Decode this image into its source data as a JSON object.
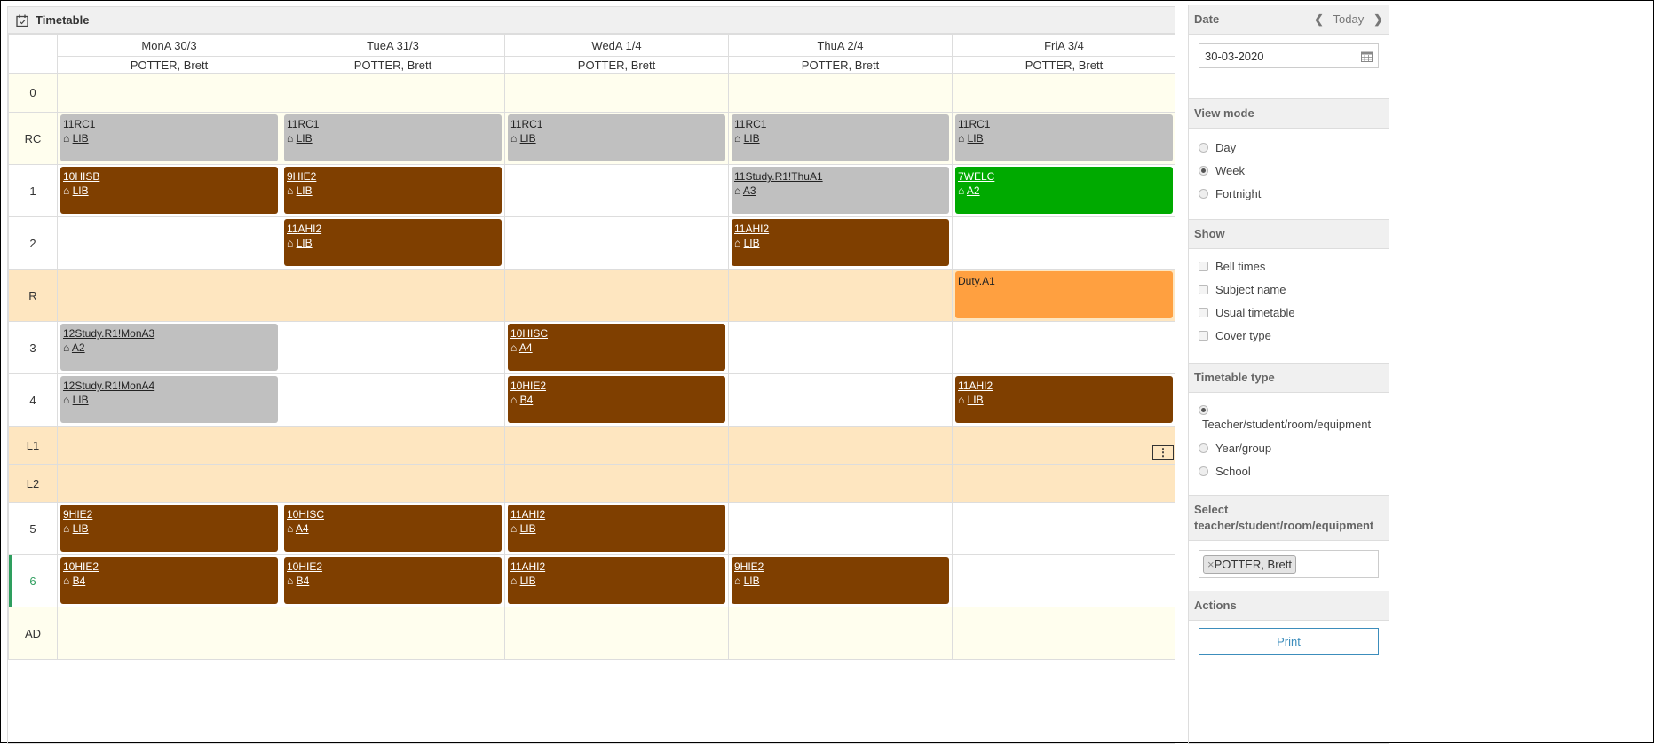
{
  "title": "Timetable",
  "days": [
    {
      "label": "MonA 30/3",
      "person": "POTTER, Brett"
    },
    {
      "label": "TueA 31/3",
      "person": "POTTER, Brett"
    },
    {
      "label": "WedA 1/4",
      "person": "POTTER, Brett"
    },
    {
      "label": "ThuA 2/4",
      "person": "POTTER, Brett"
    },
    {
      "label": "FriA 3/4",
      "person": "POTTER, Brett"
    }
  ],
  "colors": {
    "grey": "#c0c0c0",
    "brown": "#7f3f00",
    "green": "#00aa00",
    "orange": "#ffa040",
    "break_row": "#fee6c0",
    "empty_row": "#fffeee",
    "current_period": "#2e9e5e"
  },
  "rows": [
    {
      "period": "0",
      "kind": "empty",
      "cells": [
        null,
        null,
        null,
        null,
        null
      ]
    },
    {
      "period": "RC",
      "kind": "empty",
      "cells": [
        {
          "title": "11RC1",
          "room": "LIB",
          "color": "g"
        },
        {
          "title": "11RC1",
          "room": "LIB",
          "color": "g"
        },
        {
          "title": "11RC1",
          "room": "LIB",
          "color": "g"
        },
        {
          "title": "11RC1",
          "room": "LIB",
          "color": "g"
        },
        {
          "title": "11RC1",
          "room": "LIB",
          "color": "g"
        }
      ]
    },
    {
      "period": "1",
      "kind": "",
      "cells": [
        {
          "title": "10HISB",
          "room": "LIB",
          "color": "b"
        },
        {
          "title": "9HIE2",
          "room": "LIB",
          "color": "b"
        },
        null,
        {
          "title": "11Study.R1!ThuA1",
          "room": "A3",
          "color": "g"
        },
        {
          "title": "7WELC",
          "room": "A2",
          "color": "gr"
        }
      ]
    },
    {
      "period": "2",
      "kind": "",
      "cells": [
        null,
        {
          "title": "11AHI2",
          "room": "LIB",
          "color": "b"
        },
        null,
        {
          "title": "11AHI2",
          "room": "LIB",
          "color": "b"
        },
        null
      ]
    },
    {
      "period": "R",
      "kind": "break",
      "cells": [
        null,
        null,
        null,
        null,
        {
          "title": "Duty.A1",
          "color": "o"
        }
      ]
    },
    {
      "period": "3",
      "kind": "",
      "cells": [
        {
          "title": "12Study.R1!MonA3",
          "room": "A2",
          "color": "g"
        },
        null,
        {
          "title": "10HISC",
          "room": "A4",
          "color": "b"
        },
        null,
        null
      ]
    },
    {
      "period": "4",
      "kind": "",
      "cells": [
        {
          "title": "12Study.R1!MonA4",
          "room": "LIB",
          "color": "g"
        },
        null,
        {
          "title": "10HIE2",
          "room": "B4",
          "color": "b"
        },
        null,
        {
          "title": "11AHI2",
          "room": "LIB",
          "color": "b"
        }
      ]
    },
    {
      "period": "L1",
      "kind": "break",
      "short": true,
      "cells": [
        null,
        null,
        null,
        null,
        null
      ]
    },
    {
      "period": "L2",
      "kind": "break",
      "short": true,
      "cells": [
        null,
        null,
        null,
        null,
        null
      ]
    },
    {
      "period": "5",
      "kind": "",
      "cells": [
        {
          "title": "9HIE2",
          "room": "LIB",
          "color": "b"
        },
        {
          "title": "10HISC",
          "room": "A4",
          "color": "b"
        },
        {
          "title": "11AHI2",
          "room": "LIB",
          "color": "b"
        },
        null,
        null
      ]
    },
    {
      "period": "6",
      "kind": "",
      "current": true,
      "cells": [
        {
          "title": "10HIE2",
          "room": "B4",
          "color": "b"
        },
        {
          "title": "10HIE2",
          "room": "B4",
          "color": "b"
        },
        {
          "title": "11AHI2",
          "room": "LIB",
          "color": "b"
        },
        {
          "title": "9HIE2",
          "room": "LIB",
          "color": "b"
        },
        null
      ]
    },
    {
      "period": "AD",
      "kind": "empty",
      "cells": [
        null,
        null,
        null,
        null,
        null
      ]
    }
  ],
  "sidebar": {
    "date": {
      "header": "Date",
      "today": "Today",
      "value": "30-03-2020"
    },
    "view_mode": {
      "header": "View mode",
      "options": [
        "Day",
        "Week",
        "Fortnight"
      ],
      "selected": "Week"
    },
    "show": {
      "header": "Show",
      "options": [
        "Bell times",
        "Subject name",
        "Usual timetable",
        "Cover type"
      ]
    },
    "timetable_type": {
      "header": "Timetable type",
      "options": [
        "Teacher/student/room/equipment",
        "Year/group",
        "School"
      ],
      "selected": "Teacher/student/room/equipment"
    },
    "select": {
      "header": "Select teacher/student/room/equipment",
      "tag": "POTTER, Brett",
      "tag_remove": "×"
    },
    "actions": {
      "header": "Actions",
      "print": "Print"
    }
  }
}
